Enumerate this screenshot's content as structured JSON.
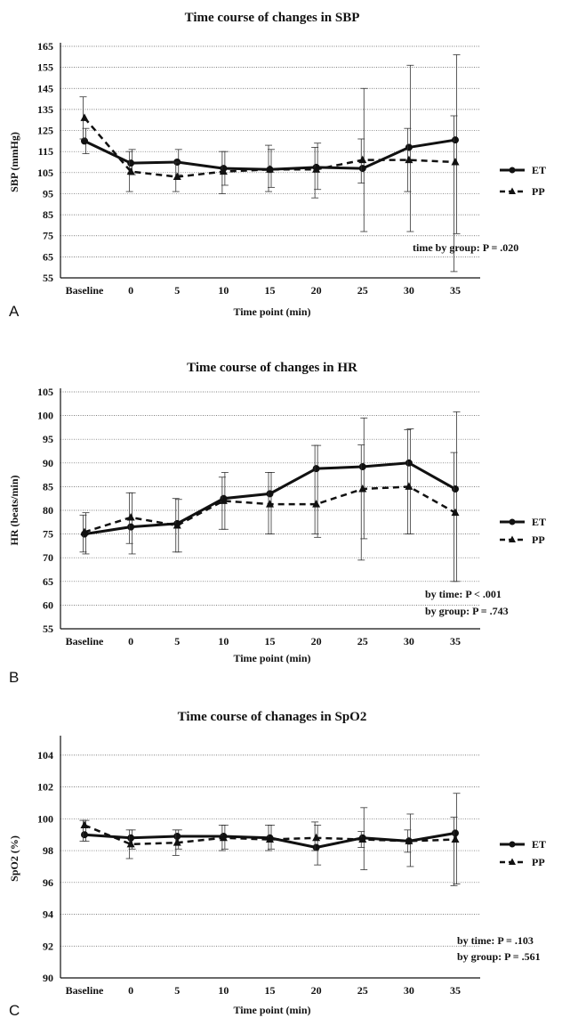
{
  "chart_data": [
    {
      "type": "line",
      "panel": "A",
      "title": "Time course of changes in SBP",
      "xlabel": "Time point (min)",
      "ylabel": "SBP (mmHg)",
      "categories": [
        "Baseline",
        "0",
        "5",
        "10",
        "15",
        "20",
        "25",
        "30",
        "35"
      ],
      "ylim": [
        55,
        165
      ],
      "yticks": [
        55,
        65,
        75,
        85,
        95,
        105,
        115,
        125,
        135,
        145,
        155,
        165
      ],
      "grid": true,
      "legend_position": "right",
      "series": [
        {
          "name": "ET",
          "values": [
            120,
            109.5,
            110,
            107,
            106.5,
            107.5,
            107,
            117,
            120.5
          ],
          "err_low": [
            114,
            104,
            104,
            99,
            98,
            97,
            77,
            77,
            76
          ],
          "err_high": [
            126,
            116,
            116,
            115,
            116,
            119,
            145,
            156,
            161
          ]
        },
        {
          "name": "PP",
          "values": [
            131,
            105.5,
            103,
            105.5,
            106.5,
            106.5,
            111,
            111,
            110
          ],
          "err_low": [
            121,
            96,
            96,
            95,
            96,
            93,
            100,
            96,
            58
          ],
          "err_high": [
            141,
            115,
            110,
            115,
            118,
            117,
            121,
            126,
            132
          ]
        }
      ],
      "annotations": [
        "time by group: P = .020"
      ]
    },
    {
      "type": "line",
      "panel": "B",
      "title": "Time course of changes in HR",
      "xlabel": "Time point (min)",
      "ylabel": "HR (beats/min)",
      "categories": [
        "Baseline",
        "0",
        "5",
        "10",
        "15",
        "20",
        "25",
        "30",
        "35"
      ],
      "ylim": [
        55,
        105
      ],
      "yticks": [
        55,
        60,
        65,
        70,
        75,
        80,
        85,
        90,
        95,
        100,
        105
      ],
      "grid": true,
      "legend_position": "right",
      "series": [
        {
          "name": "ET",
          "values": [
            75,
            76.5,
            77.2,
            82.5,
            83.5,
            88.8,
            89.2,
            90,
            84.5
          ],
          "err_low": [
            70.8,
            70.8,
            71.2,
            76,
            75,
            74.3,
            74,
            75,
            65
          ],
          "err_high": [
            79.5,
            83.7,
            82.3,
            88,
            88,
            93.7,
            99.5,
            97.2,
            100.8
          ]
        },
        {
          "name": "PP",
          "values": [
            75.4,
            78.5,
            76.8,
            82,
            81.3,
            81.3,
            84.5,
            85,
            79.5
          ],
          "err_low": [
            71.2,
            73,
            71.2,
            76,
            75,
            75,
            69.5,
            75,
            65
          ],
          "err_high": [
            79,
            83.7,
            82.5,
            87,
            88,
            93.7,
            93.8,
            97,
            92.2
          ]
        }
      ],
      "annotations": [
        "by time: P < .001",
        "by group: P = .743"
      ]
    },
    {
      "type": "line",
      "panel": "C",
      "title": "Time course of chanages in SpO2",
      "xlabel": "Time point (min)",
      "ylabel": "SpO2 (%)",
      "categories": [
        "Baseline",
        "0",
        "5",
        "10",
        "15",
        "20",
        "25",
        "30",
        "35"
      ],
      "ylim": [
        90,
        105
      ],
      "yticks": [
        90,
        92,
        94,
        96,
        98,
        100,
        102,
        104
      ],
      "grid": true,
      "legend_position": "right",
      "series": [
        {
          "name": "ET",
          "values": [
            99,
            98.8,
            98.9,
            98.9,
            98.8,
            98.2,
            98.8,
            98.6,
            99.1
          ],
          "err_low": [
            98.6,
            98.1,
            98.1,
            98.1,
            98.1,
            97.1,
            96.8,
            97,
            95.9
          ],
          "err_high": [
            99.9,
            99.3,
            99.3,
            99.6,
            99.6,
            99.6,
            100.7,
            100.3,
            101.6
          ]
        },
        {
          "name": "PP",
          "values": [
            99.6,
            98.4,
            98.5,
            98.8,
            98.7,
            98.8,
            98.7,
            98.6,
            98.7
          ],
          "err_low": [
            98.6,
            97.5,
            97.7,
            98,
            98,
            98,
            98.2,
            97.9,
            95.8
          ],
          "err_high": [
            99.9,
            99.3,
            99.3,
            99.6,
            99.6,
            99.8,
            99.2,
            99.3,
            100.1
          ]
        }
      ],
      "annotations": [
        "by time: P = .103",
        "by group: P = .561"
      ]
    }
  ]
}
